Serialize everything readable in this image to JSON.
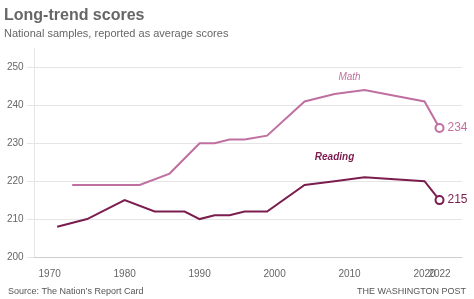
{
  "chart_data": {
    "type": "line",
    "title": "Long-trend scores",
    "subtitle": "National samples, reported as average scores",
    "source": "Source: The Nation’s Report Card",
    "credit": "THE WASHINGTON POST",
    "series": [
      {
        "name": "Math",
        "color": "#c070a0",
        "x": [
          1973,
          1978,
          1982,
          1986,
          1990,
          1992,
          1994,
          1996,
          1999,
          2004,
          2008,
          2012,
          2020,
          2022
        ],
        "values": [
          219,
          219,
          219,
          222,
          230,
          230,
          231,
          231,
          232,
          241,
          243,
          244,
          241,
          234
        ],
        "value_labels": [
          null,
          null,
          null,
          null,
          null,
          null,
          null,
          null,
          null,
          null,
          null,
          null,
          null,
          "234"
        ]
      },
      {
        "name": "Reading",
        "color": "#7b1d4e",
        "x": [
          1971,
          1975,
          1980,
          1984,
          1988,
          1990,
          1992,
          1994,
          1996,
          1999,
          2004,
          2008,
          2012,
          2020,
          2022
        ],
        "values": [
          208,
          210,
          215,
          212,
          212,
          210,
          211,
          211,
          212,
          212,
          219,
          220,
          221,
          220,
          215
        ],
        "value_labels": [
          null,
          null,
          null,
          null,
          null,
          null,
          null,
          null,
          null,
          null,
          null,
          null,
          null,
          null,
          "215"
        ]
      }
    ],
    "annotations": [
      {
        "text": "Math",
        "x": 2010,
        "y": 246
      },
      {
        "text": "Reading",
        "x": 2008,
        "y": 225
      }
    ],
    "xlim": [
      1968,
      2025
    ],
    "xticks": [
      1970,
      1980,
      1990,
      2000,
      2010,
      2020,
      2022
    ],
    "ylim": [
      200,
      255
    ],
    "yticks": [
      200,
      210,
      220,
      230,
      240,
      250
    ],
    "grid": true
  }
}
